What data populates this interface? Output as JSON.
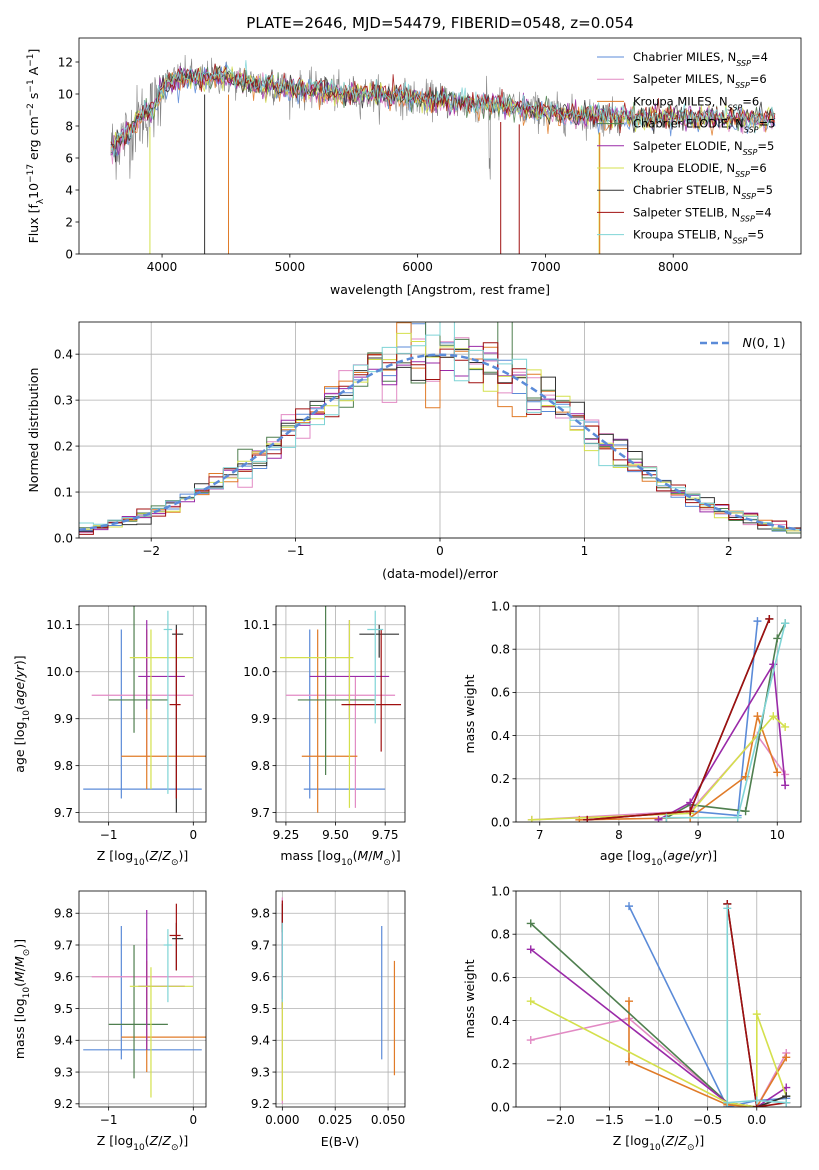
{
  "figure": {
    "title": "PLATE=2646, MJD=54479, FIBERID=0548, z=0.054",
    "models": [
      {
        "name": "Chabrier MILES",
        "nssp": "4",
        "color": "#5b8bd8"
      },
      {
        "name": "Salpeter MILES",
        "nssp": "6",
        "color": "#e28ac4"
      },
      {
        "name": "Kroupa MILES",
        "nssp": "6",
        "color": "#e07b28"
      },
      {
        "name": "Chabrier ELODIE",
        "nssp": "5",
        "color": "#4f7f4f"
      },
      {
        "name": "Salpeter ELODIE",
        "nssp": "5",
        "color": "#9a2aa8"
      },
      {
        "name": "Kroupa ELODIE",
        "nssp": "6",
        "color": "#d4e04c"
      },
      {
        "name": "Chabrier STELIB",
        "nssp": "5",
        "color": "#333333"
      },
      {
        "name": "Salpeter STELIB",
        "nssp": "4",
        "color": "#a01010"
      },
      {
        "name": "Kroupa STELIB",
        "nssp": "5",
        "color": "#7fd4d6"
      }
    ]
  },
  "chart_data": [
    {
      "type": "line",
      "id": "spectrum",
      "xlabel": "wavelength [Angstrom, rest frame]",
      "ylabel": "Flux [f_λ10^-17 erg cm^-2 s^-1 A^-1]",
      "xlim": [
        3350,
        9000
      ],
      "ylim": [
        0,
        13.5
      ],
      "xticks": [
        4000,
        5000,
        6000,
        7000,
        8000
      ],
      "yticks": [
        0,
        2,
        4,
        6,
        8,
        10,
        12
      ],
      "data_color": "#808080",
      "continuum": {
        "x": [
          3600,
          3650,
          3700,
          3750,
          3800,
          3850,
          3900,
          3950,
          4000,
          4100,
          4200,
          4300,
          4400,
          4500,
          4600,
          4800,
          5000,
          5200,
          5400,
          5600,
          5800,
          6000,
          6200,
          6400,
          6600,
          6800,
          7000,
          7200,
          7400,
          7600
        ],
        "y": [
          6.5,
          7.0,
          7.3,
          7.6,
          8.3,
          8.7,
          8.9,
          9.3,
          10.5,
          10.9,
          11.1,
          10.9,
          11.1,
          11.0,
          10.8,
          10.6,
          10.3,
          10.2,
          10.0,
          10.0,
          9.9,
          9.7,
          9.6,
          9.4,
          9.3,
          9.1,
          8.9,
          8.7,
          8.6,
          8.5
        ]
      }
    },
    {
      "type": "histogram",
      "id": "residuals",
      "xlabel": "(data-model)/error",
      "ylabel": "Normed distribution",
      "legend": "N(0,1)",
      "xlim": [
        -2.5,
        2.5
      ],
      "ylim": [
        0,
        0.47
      ],
      "xticks": [
        -2,
        -1,
        0,
        1,
        2
      ],
      "yticks": [
        0,
        0.1,
        0.2,
        0.3,
        0.4
      ]
    },
    {
      "type": "scatter",
      "id": "age-vs-Z",
      "xlabel": "Z [log10(Z/Z_sun)]",
      "ylabel": "age  [log10(age/yr)]",
      "xlim": [
        -1.35,
        0.15
      ],
      "ylim": [
        9.68,
        10.14
      ],
      "xticks": [
        -1,
        0
      ],
      "yticks": [
        9.7,
        9.8,
        9.9,
        10.0,
        10.1
      ],
      "points": [
        {
          "x": -0.85,
          "y": 9.75,
          "xerr": [
            0.45,
            0.95
          ],
          "yerr": [
            0.02,
            0.34
          ]
        },
        {
          "x": -0.55,
          "y": 9.95,
          "xerr": [
            0.65,
            0.55
          ],
          "yerr": [
            0.15,
            0.04
          ]
        },
        {
          "x": -0.55,
          "y": 9.82,
          "xerr": [
            0.3,
            0.75
          ],
          "yerr": [
            0.07,
            0.27
          ]
        },
        {
          "x": -0.7,
          "y": 9.94,
          "xerr": [
            0.3,
            0.4
          ],
          "yerr": [
            0.07,
            0.2
          ]
        },
        {
          "x": -0.55,
          "y": 9.99,
          "xerr": [
            0.1,
            0.45
          ],
          "yerr": [
            0.07,
            0.12
          ]
        },
        {
          "x": -0.5,
          "y": 10.03,
          "xerr": [
            0.25,
            0.5
          ],
          "yerr": [
            0.28,
            0.06
          ]
        },
        {
          "x": -0.2,
          "y": 10.08,
          "xerr": [
            0.05,
            0.08
          ],
          "yerr": [
            0.38,
            0.02
          ]
        },
        {
          "x": -0.2,
          "y": 9.93,
          "xerr": [
            0.08,
            0.05
          ],
          "yerr": [
            0.2,
            0.16
          ]
        },
        {
          "x": -0.3,
          "y": 10.09,
          "xerr": [
            0.05,
            0.05
          ],
          "yerr": [
            0.35,
            0.04
          ]
        }
      ]
    },
    {
      "type": "scatter",
      "id": "age-vs-mass",
      "xlabel": "mass [log10(M/M_sun)]",
      "ylabel": "",
      "xlim": [
        9.2,
        9.85
      ],
      "ylim": [
        9.68,
        10.14
      ],
      "xticks": [
        9.25,
        9.5,
        9.75
      ],
      "yticks": [
        9.7,
        9.8,
        9.9,
        10.0,
        10.1
      ],
      "points": [
        {
          "x": 9.37,
          "y": 9.75,
          "xerr": [
            0.03,
            0.38
          ],
          "yerr": [
            0.02,
            0.34
          ]
        },
        {
          "x": 9.6,
          "y": 9.95,
          "xerr": [
            0.35,
            0.2
          ],
          "yerr": [
            0.24,
            0.04
          ]
        },
        {
          "x": 9.41,
          "y": 9.82,
          "xerr": [
            0.08,
            0.2
          ],
          "yerr": [
            0.12,
            0.27
          ]
        },
        {
          "x": 9.45,
          "y": 9.94,
          "xerr": [
            0.14,
            0.25
          ],
          "yerr": [
            0.16,
            0.2
          ]
        },
        {
          "x": 9.57,
          "y": 9.99,
          "xerr": [
            0.2,
            0.2
          ],
          "yerr": [
            0.09,
            0.12
          ]
        },
        {
          "x": 9.57,
          "y": 10.03,
          "xerr": [
            0.35,
            0.02
          ],
          "yerr": [
            0.32,
            0.08
          ]
        },
        {
          "x": 9.72,
          "y": 10.08,
          "xerr": [
            0.1,
            0.1
          ],
          "yerr": [
            0.05,
            0.02
          ]
        },
        {
          "x": 9.73,
          "y": 9.93,
          "xerr": [
            0.2,
            0.1
          ],
          "yerr": [
            0.1,
            0.16
          ]
        },
        {
          "x": 9.7,
          "y": 10.09,
          "xerr": [
            0.04,
            0.04
          ],
          "yerr": [
            0.2,
            0.04
          ]
        }
      ]
    },
    {
      "type": "line",
      "id": "massweight-vs-age",
      "xlabel": "age  [log10(age/yr)]",
      "ylabel": "mass weight",
      "xlim": [
        6.7,
        10.3
      ],
      "ylim": [
        0,
        1.0
      ],
      "xticks": [
        7,
        8,
        9,
        10
      ],
      "yticks": [
        0,
        0.2,
        0.4,
        0.6,
        0.8,
        1.0
      ],
      "series": [
        {
          "x": [
            8.9,
            9.5,
            9.75
          ],
          "y": [
            0.05,
            0.03,
            0.93
          ]
        },
        {
          "x": [
            6.9,
            8.9,
            9.75,
            10.1
          ],
          "y": [
            0.01,
            0.05,
            0.4,
            0.22
          ]
        },
        {
          "x": [
            7.5,
            8.9,
            9.6,
            9.75,
            10.0
          ],
          "y": [
            0.01,
            0.02,
            0.21,
            0.49,
            0.23
          ]
        },
        {
          "x": [
            8.6,
            8.9,
            9.6,
            10.0,
            10.1
          ],
          "y": [
            0.02,
            0.08,
            0.05,
            0.85,
            0.92
          ]
        },
        {
          "x": [
            8.5,
            8.9,
            9.95,
            10.1
          ],
          "y": [
            0.01,
            0.09,
            0.73,
            0.17
          ]
        },
        {
          "x": [
            6.9,
            8.9,
            9.95,
            10.1
          ],
          "y": [
            0.01,
            0.04,
            0.49,
            0.44
          ]
        },
        {
          "x": [
            7.6,
            8.9,
            9.9
          ],
          "y": [
            0.01,
            0.05,
            0.94
          ]
        },
        {
          "x": [
            7.6,
            8.9,
            9.9
          ],
          "y": [
            0.01,
            0.05,
            0.94
          ]
        },
        {
          "x": [
            8.6,
            9.5,
            10.1
          ],
          "y": [
            0.02,
            0.02,
            0.92
          ]
        }
      ]
    },
    {
      "type": "scatter",
      "id": "mass-vs-Z",
      "xlabel": "Z [log10(Z/Z_sun)]",
      "ylabel": "mass [log10(M/M_sun)]",
      "xlim": [
        -1.35,
        0.15
      ],
      "ylim": [
        9.19,
        9.87
      ],
      "xticks": [
        -1,
        0
      ],
      "yticks": [
        9.2,
        9.3,
        9.4,
        9.5,
        9.6,
        9.7,
        9.8
      ],
      "points": [
        {
          "x": -0.85,
          "y": 9.37,
          "xerr": [
            0.45,
            0.95
          ],
          "yerr": [
            0.03,
            0.39
          ]
        },
        {
          "x": -0.55,
          "y": 9.6,
          "xerr": [
            0.65,
            0.55
          ],
          "yerr": [
            0.09,
            0.12
          ]
        },
        {
          "x": -0.55,
          "y": 9.41,
          "xerr": [
            0.3,
            0.75
          ],
          "yerr": [
            0.11,
            0.24
          ]
        },
        {
          "x": -0.7,
          "y": 9.45,
          "xerr": [
            0.3,
            0.4
          ],
          "yerr": [
            0.17,
            0.25
          ]
        },
        {
          "x": -0.55,
          "y": 9.57,
          "xerr": [
            0.1,
            0.45
          ],
          "yerr": [
            0.2,
            0.24
          ]
        },
        {
          "x": -0.5,
          "y": 9.57,
          "xerr": [
            0.25,
            0.5
          ],
          "yerr": [
            0.35,
            0.06
          ]
        },
        {
          "x": -0.2,
          "y": 9.72,
          "xerr": [
            0.05,
            0.08
          ],
          "yerr": [
            0.1,
            0.05
          ]
        },
        {
          "x": -0.2,
          "y": 9.73,
          "xerr": [
            0.08,
            0.05
          ],
          "yerr": [
            0.11,
            0.1
          ]
        },
        {
          "x": -0.3,
          "y": 9.7,
          "xerr": [
            0.05,
            0.05
          ],
          "yerr": [
            0.18,
            0.05
          ]
        }
      ]
    },
    {
      "type": "scatter",
      "id": "mass-vs-EBV",
      "xlabel": "E(B-V)",
      "ylabel": "",
      "xlim": [
        -0.003,
        0.058
      ],
      "ylim": [
        9.19,
        9.87
      ],
      "xticks": [
        0.0,
        0.025,
        0.05
      ],
      "yticks": [
        9.2,
        9.3,
        9.4,
        9.5,
        9.6,
        9.7,
        9.8
      ],
      "points": [
        {
          "x": 0.047,
          "y": 9.55,
          "yerr": [
            0.21,
            0.21
          ]
        },
        {
          "x": 0.0,
          "y": 9.5,
          "yerr": [
            0.3,
            0.35
          ]
        },
        {
          "x": 0.053,
          "y": 9.47,
          "yerr": [
            0.18,
            0.18
          ]
        },
        {
          "x": 0.0,
          "y": 9.6,
          "yerr": [
            0.1,
            0.2
          ]
        },
        {
          "x": 0.0,
          "y": 9.6,
          "yerr": [
            0.1,
            0.2
          ]
        },
        {
          "x": 0.0,
          "y": 9.35,
          "yerr": [
            0.14,
            0.18
          ]
        },
        {
          "x": 0.0,
          "y": 9.78,
          "yerr": [
            0.04,
            0.05
          ]
        },
        {
          "x": 0.0,
          "y": 9.78,
          "yerr": [
            0.03,
            0.06
          ]
        },
        {
          "x": 0.0,
          "y": 9.65,
          "yerr": [
            0.13,
            0.12
          ]
        }
      ]
    },
    {
      "type": "line",
      "id": "massweight-vs-Z",
      "xlabel": "Z [log10(Z/Z_sun)]",
      "ylabel": "mass weight",
      "xlim": [
        -2.45,
        0.45
      ],
      "ylim": [
        0,
        1.0
      ],
      "xticks": [
        -2.0,
        -1.5,
        -1.0,
        -0.5,
        0.0
      ],
      "yticks": [
        0,
        0.2,
        0.4,
        0.6,
        0.8,
        1.0
      ],
      "series": [
        {
          "x": [
            -1.3,
            -0.3,
            0.0,
            0.3
          ],
          "y": [
            0.93,
            0.0,
            0.03,
            0.04
          ]
        },
        {
          "x": [
            -2.3,
            -1.3,
            -0.3,
            0.0,
            0.3
          ],
          "y": [
            0.31,
            0.41,
            0.02,
            0.0,
            0.25
          ]
        },
        {
          "x": [
            -1.3,
            -1.3,
            -0.3,
            0.0,
            0.3
          ],
          "y": [
            0.49,
            0.21,
            0.01,
            0.0,
            0.23
          ]
        },
        {
          "x": [
            -2.3,
            -0.3,
            0.0,
            0.3
          ],
          "y": [
            0.85,
            0.02,
            0.0,
            0.05
          ]
        },
        {
          "x": [
            -2.3,
            -0.3,
            0.0,
            0.3
          ],
          "y": [
            0.73,
            0.02,
            0.0,
            0.09
          ]
        },
        {
          "x": [
            -2.3,
            -0.3,
            0.0,
            0.0,
            0.3
          ],
          "y": [
            0.49,
            0.02,
            0.0,
            0.43,
            0.05
          ]
        },
        {
          "x": [
            -0.3,
            0.0,
            0.3
          ],
          "y": [
            0.94,
            0.0,
            0.05
          ]
        },
        {
          "x": [
            -0.3,
            0.0,
            0.3
          ],
          "y": [
            0.94,
            0.0,
            0.02
          ]
        },
        {
          "x": [
            -0.3,
            -0.3,
            0.0,
            0.3
          ],
          "y": [
            0.92,
            0.02,
            0.03,
            0.02
          ]
        }
      ]
    }
  ]
}
